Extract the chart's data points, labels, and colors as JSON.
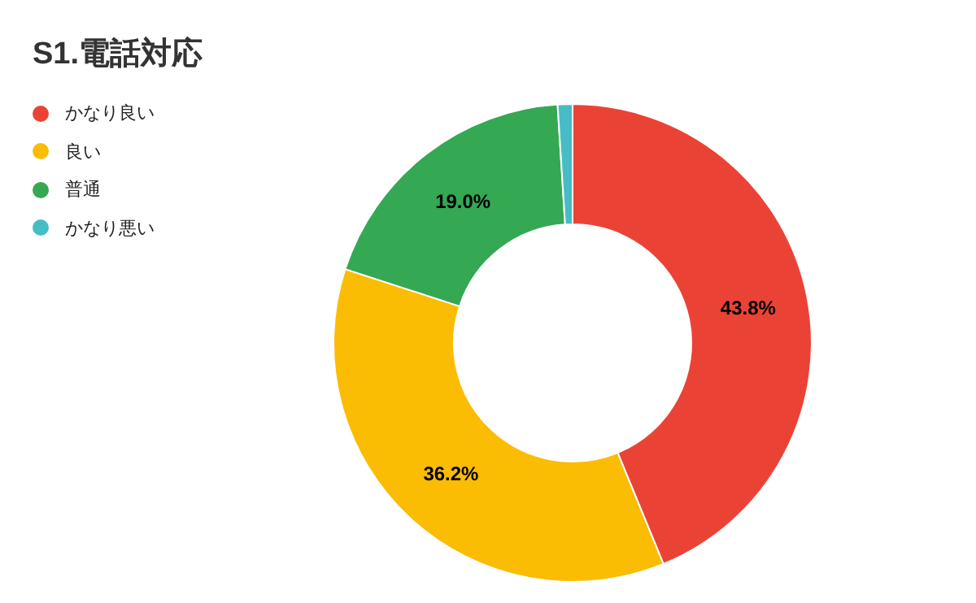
{
  "chart_data": {
    "type": "donut",
    "title": "S1.電話対応",
    "categories": [
      "かなり良い",
      "良い",
      "普通",
      "かなり悪い"
    ],
    "values": [
      43.8,
      36.2,
      19.0,
      1.0
    ],
    "colors": [
      "#ea4335",
      "#fbbc04",
      "#34a853",
      "#46bdc6"
    ],
    "value_labels": [
      "43.8%",
      "36.2%",
      "19.0%",
      null
    ],
    "legend": "top left"
  }
}
